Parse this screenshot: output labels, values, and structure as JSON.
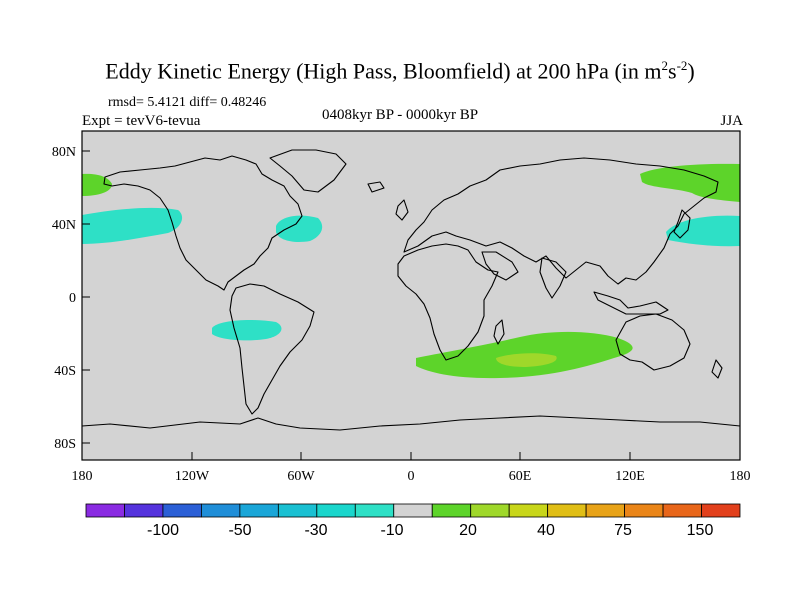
{
  "title": {
    "main": "Eddy Kinetic Energy (High Pass, Bloomfield) at 200 hPa (in m",
    "sup1": "2",
    "mid": "s",
    "sup2": "-2",
    "end": ")"
  },
  "stats": "rmsd= 5.4121 diff= 0.48246",
  "expt": "Expt = tevV6-tevua",
  "period": "0408kyr BP - 0000kyr BP",
  "season": "JJA",
  "colors": {
    "land_ocean": "#d3d3d3",
    "coast": "#000000",
    "cyan_region": "#2ee0c6",
    "green_region": "#5dd42a",
    "yellowgreen_region": "#9fd82a"
  },
  "map": {
    "lat_labels": [
      "80N",
      "40N",
      "0",
      "40S",
      "80S"
    ],
    "lon_labels": [
      "180",
      "120W",
      "60W",
      "0",
      "60E",
      "120E",
      "180"
    ]
  },
  "colorbar": {
    "colors": [
      "#8a2be2",
      "#5533dd",
      "#2b5fd6",
      "#1f8ed8",
      "#1aa6d8",
      "#1ac0d2",
      "#1ad6cc",
      "#2ee0c6",
      "#d3d3d3",
      "#5dd42a",
      "#9fd82a",
      "#c8d61a",
      "#e0be16",
      "#e8a318",
      "#ea8518",
      "#e8661a",
      "#e2401c"
    ],
    "labels": [
      "-100",
      "-50",
      "-30",
      "-10",
      "20",
      "40",
      "75",
      "150"
    ]
  }
}
